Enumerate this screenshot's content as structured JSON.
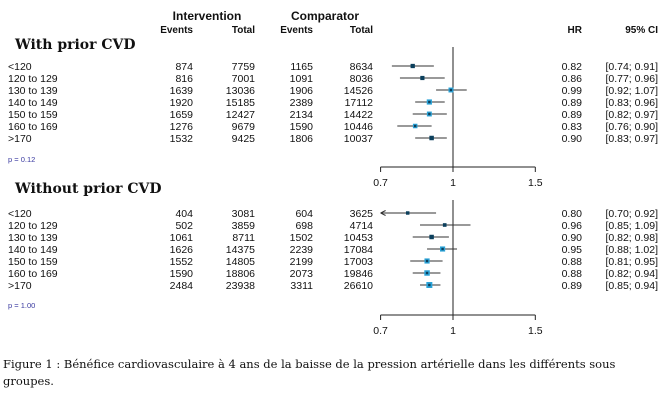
{
  "chart_data": {
    "type": "forest",
    "x_scale": "log",
    "xlim": [
      0.7,
      1.5
    ],
    "xticks": [
      0.7,
      1,
      1.5
    ],
    "reference_line": 1,
    "headers": {
      "intervention": "Intervention",
      "comparator": "Comparator",
      "events": "Events",
      "total": "Total",
      "hr": "HR",
      "ci": "95% CI"
    },
    "colors": {
      "box_dark": "#0b3f5c",
      "box_light": "#2aa3d8",
      "line": "#333333"
    },
    "panels": [
      {
        "title": "With prior CVD",
        "p_value": "p = 0.12",
        "rows": [
          {
            "label": "<120",
            "int_events": 874,
            "int_total": 7759,
            "comp_events": 1165,
            "comp_total": 8634,
            "hr": 0.82,
            "lo": 0.74,
            "hi": 0.91,
            "ci_text": "[0.74; 0.91]"
          },
          {
            "label": "120 to 129",
            "int_events": 816,
            "int_total": 7001,
            "comp_events": 1091,
            "comp_total": 8036,
            "hr": 0.86,
            "lo": 0.77,
            "hi": 0.96,
            "ci_text": "[0.77; 0.96]"
          },
          {
            "label": "130 to 139",
            "int_events": 1639,
            "int_total": 13036,
            "comp_events": 1906,
            "comp_total": 14526,
            "hr": 0.99,
            "lo": 0.92,
            "hi": 1.07,
            "ci_text": "[0.92; 1.07]"
          },
          {
            "label": "140 to 149",
            "int_events": 1920,
            "int_total": 15185,
            "comp_events": 2389,
            "comp_total": 17112,
            "hr": 0.89,
            "lo": 0.83,
            "hi": 0.96,
            "ci_text": "[0.83; 0.96]"
          },
          {
            "label": "150 to 159",
            "int_events": 1659,
            "int_total": 12427,
            "comp_events": 2134,
            "comp_total": 14422,
            "hr": 0.89,
            "lo": 0.82,
            "hi": 0.97,
            "ci_text": "[0.82; 0.97]"
          },
          {
            "label": "160 to 169",
            "int_events": 1276,
            "int_total": 9679,
            "comp_events": 1590,
            "comp_total": 10446,
            "hr": 0.83,
            "lo": 0.76,
            "hi": 0.9,
            "ci_text": "[0.76; 0.90]"
          },
          {
            "label": ">170",
            "int_events": 1532,
            "int_total": 9425,
            "comp_events": 1806,
            "comp_total": 10037,
            "hr": 0.9,
            "lo": 0.83,
            "hi": 0.97,
            "ci_text": "[0.83; 0.97]"
          }
        ]
      },
      {
        "title": "Without  prior CVD",
        "p_value": "p = 1.00",
        "rows": [
          {
            "label": "<120",
            "int_events": 404,
            "int_total": 3081,
            "comp_events": 604,
            "comp_total": 3625,
            "hr": 0.8,
            "lo": 0.7,
            "hi": 0.92,
            "ci_text": "[0.70; 0.92]"
          },
          {
            "label": "120 to 129",
            "int_events": 502,
            "int_total": 3859,
            "comp_events": 698,
            "comp_total": 4714,
            "hr": 0.96,
            "lo": 0.85,
            "hi": 1.09,
            "ci_text": "[0.85; 1.09]"
          },
          {
            "label": "130 to 139",
            "int_events": 1061,
            "int_total": 8711,
            "comp_events": 1502,
            "comp_total": 10453,
            "hr": 0.9,
            "lo": 0.82,
            "hi": 0.98,
            "ci_text": "[0.82; 0.98]"
          },
          {
            "label": "140 to 149",
            "int_events": 1626,
            "int_total": 14375,
            "comp_events": 2239,
            "comp_total": 17084,
            "hr": 0.95,
            "lo": 0.88,
            "hi": 1.02,
            "ci_text": "[0.88; 1.02]"
          },
          {
            "label": "150 to 159",
            "int_events": 1552,
            "int_total": 14805,
            "comp_events": 2199,
            "comp_total": 17003,
            "hr": 0.88,
            "lo": 0.81,
            "hi": 0.95,
            "ci_text": "[0.81; 0.95]"
          },
          {
            "label": "160 to 169",
            "int_events": 1590,
            "int_total": 18806,
            "comp_events": 2073,
            "comp_total": 19846,
            "hr": 0.88,
            "lo": 0.82,
            "hi": 0.94,
            "ci_text": "[0.82; 0.94]"
          },
          {
            "label": ">170",
            "int_events": 2484,
            "int_total": 23938,
            "comp_events": 3311,
            "comp_total": 26610,
            "hr": 0.89,
            "lo": 0.85,
            "hi": 0.94,
            "ci_text": "[0.85; 0.94]"
          }
        ]
      }
    ]
  },
  "caption": "Figure 1 : Bénéfice cardiovasculaire à  4 ans de la baisse de la pression artérielle dans les différents sous groupes."
}
